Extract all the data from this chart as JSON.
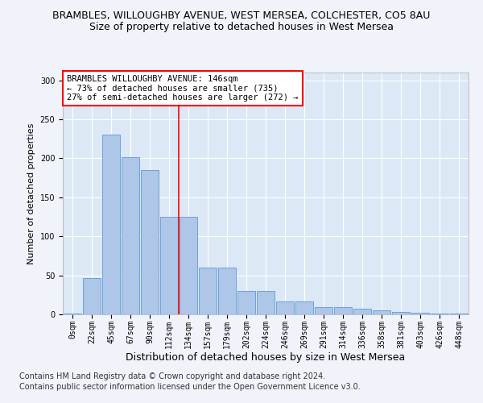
{
  "title1": "BRAMBLES, WILLOUGHBY AVENUE, WEST MERSEA, COLCHESTER, CO5 8AU",
  "title2": "Size of property relative to detached houses in West Mersea",
  "xlabel": "Distribution of detached houses by size in West Mersea",
  "ylabel": "Number of detached properties",
  "footnote1": "Contains HM Land Registry data © Crown copyright and database right 2024.",
  "footnote2": "Contains public sector information licensed under the Open Government Licence v3.0.",
  "categories": [
    "0sqm",
    "22sqm",
    "45sqm",
    "67sqm",
    "90sqm",
    "112sqm",
    "134sqm",
    "157sqm",
    "179sqm",
    "202sqm",
    "224sqm",
    "246sqm",
    "269sqm",
    "291sqm",
    "314sqm",
    "336sqm",
    "358sqm",
    "381sqm",
    "403sqm",
    "426sqm",
    "448sqm"
  ],
  "values": [
    1,
    47,
    230,
    202,
    185,
    125,
    125,
    60,
    60,
    30,
    30,
    17,
    17,
    9,
    9,
    7,
    5,
    3,
    2,
    1,
    1
  ],
  "bar_color": "#aec6e8",
  "bar_edge_color": "#5b9bd5",
  "vline_x": 5.5,
  "vline_color": "red",
  "annotation_text": "BRAMBLES WILLOUGHBY AVENUE: 146sqm\n← 73% of detached houses are smaller (735)\n27% of semi-detached houses are larger (272) →",
  "annotation_box_color": "white",
  "annotation_box_edge": "red",
  "ylim": [
    0,
    310
  ],
  "yticks": [
    0,
    50,
    100,
    150,
    200,
    250,
    300
  ],
  "background_color": "#f0f4fa",
  "plot_bg_color": "#dce8f5",
  "grid_color": "white",
  "title1_fontsize": 9,
  "title2_fontsize": 9,
  "xlabel_fontsize": 9,
  "ylabel_fontsize": 8,
  "tick_fontsize": 7,
  "annotation_fontsize": 7.5,
  "footnote_fontsize": 7
}
